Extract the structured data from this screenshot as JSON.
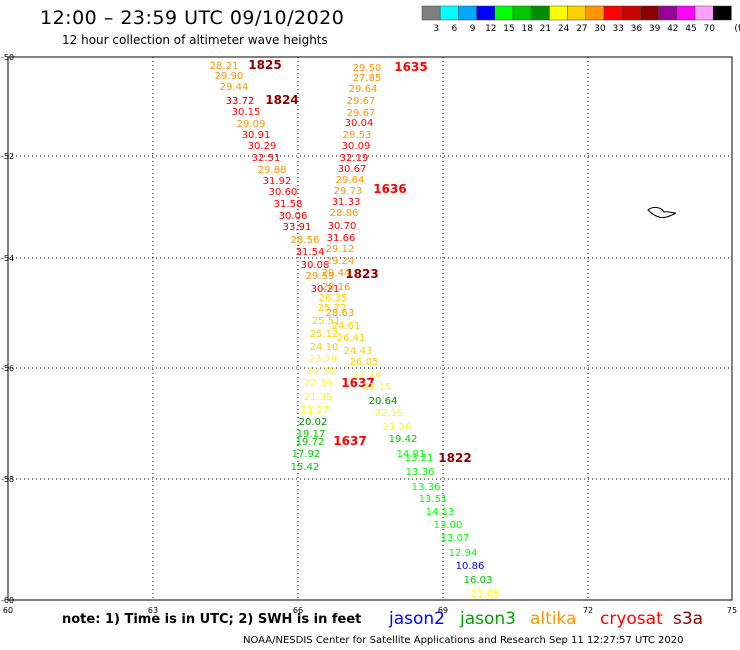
{
  "header": {
    "title": "12:00 – 23:59 UTC 09/10/2020",
    "subtitle": "12 hour collection of altimeter wave heights"
  },
  "legend": {
    "unit": "(ft)",
    "bins": [
      {
        "label": "3",
        "color": "#7f7f7f"
      },
      {
        "label": "6",
        "color": "#00ffff"
      },
      {
        "label": "9",
        "color": "#00a8ff"
      },
      {
        "label": "12",
        "color": "#0000ff"
      },
      {
        "label": "15",
        "color": "#00ff00"
      },
      {
        "label": "18",
        "color": "#00c800"
      },
      {
        "label": "21",
        "color": "#008c00"
      },
      {
        "label": "24",
        "color": "#ffff00"
      },
      {
        "label": "27",
        "color": "#ffd000"
      },
      {
        "label": "30",
        "color": "#ff9600"
      },
      {
        "label": "33",
        "color": "#ff0000"
      },
      {
        "label": "36",
        "color": "#c80000"
      },
      {
        "label": "39",
        "color": "#8c0000"
      },
      {
        "label": "42",
        "color": "#960096"
      },
      {
        "label": "45",
        "color": "#ff00ff"
      },
      {
        "label": "70",
        "color": "#ffa0ff"
      },
      {
        "label": "",
        "color": "#000000"
      }
    ]
  },
  "map": {
    "lat_labels": [
      "-50",
      "-52",
      "-54",
      "-56",
      "-58",
      "-60"
    ],
    "lon_labels": [
      "60",
      "63",
      "66",
      "69",
      "72",
      "75"
    ],
    "pass_times": [
      {
        "text": "1825",
        "color": "#8c0000"
      },
      {
        "text": "1824",
        "color": "#8c0000"
      },
      {
        "text": "1635",
        "color": "#ff0000"
      },
      {
        "text": "1636",
        "color": "#ff0000"
      },
      {
        "text": "1823",
        "color": "#8c0000"
      },
      {
        "text": "1637",
        "color": "#ff0000"
      },
      {
        "text": "1637",
        "color": "#ff0000"
      },
      {
        "text": "1822",
        "color": "#8c0000"
      }
    ],
    "heights": [
      {
        "text": "28.21",
        "color": "#ff9600"
      },
      {
        "text": "29.90",
        "color": "#ff9600"
      },
      {
        "text": "29.44",
        "color": "#ff9600"
      },
      {
        "text": "33.72",
        "color": "#c80000"
      },
      {
        "text": "30.15",
        "color": "#ff0000"
      },
      {
        "text": "29.09",
        "color": "#ff9600"
      },
      {
        "text": "30.91",
        "color": "#ff0000"
      },
      {
        "text": "30.29",
        "color": "#ff0000"
      },
      {
        "text": "32.51",
        "color": "#ff0000"
      },
      {
        "text": "29.88",
        "color": "#ff9600"
      },
      {
        "text": "31.92",
        "color": "#ff0000"
      },
      {
        "text": "30.60",
        "color": "#ff0000"
      },
      {
        "text": "31.58",
        "color": "#ff0000"
      },
      {
        "text": "30.06",
        "color": "#ff0000"
      },
      {
        "text": "33.91",
        "color": "#c80000"
      },
      {
        "text": "28.56",
        "color": "#ff9600"
      },
      {
        "text": "31.54",
        "color": "#ff0000"
      },
      {
        "text": "30.08",
        "color": "#ff0000"
      },
      {
        "text": "29.59",
        "color": "#ff9600"
      },
      {
        "text": "30.21",
        "color": "#ff0000"
      },
      {
        "text": "29.50",
        "color": "#ff9600"
      },
      {
        "text": "27.85",
        "color": "#ff9600"
      },
      {
        "text": "29.64",
        "color": "#ff9600"
      },
      {
        "text": "29.67",
        "color": "#ff9600"
      },
      {
        "text": "29.67",
        "color": "#ff9600"
      },
      {
        "text": "30.04",
        "color": "#ff0000"
      },
      {
        "text": "28.53",
        "color": "#ff9600"
      },
      {
        "text": "30.09",
        "color": "#ff0000"
      },
      {
        "text": "32.19",
        "color": "#ff0000"
      },
      {
        "text": "30.67",
        "color": "#ff0000"
      },
      {
        "text": "29.64",
        "color": "#ff9600"
      },
      {
        "text": "29.73",
        "color": "#ff9600"
      },
      {
        "text": "31.33",
        "color": "#ff0000"
      },
      {
        "text": "28.86",
        "color": "#ff9600"
      },
      {
        "text": "30.70",
        "color": "#ff0000"
      },
      {
        "text": "31.66",
        "color": "#ff0000"
      },
      {
        "text": "29.12",
        "color": "#ff9600"
      },
      {
        "text": "29.24",
        "color": "#ff9600"
      },
      {
        "text": "29.44",
        "color": "#ff9600"
      },
      {
        "text": "28.16",
        "color": "#ff9600"
      },
      {
        "text": "26.35",
        "color": "#ffd000"
      },
      {
        "text": "25.72",
        "color": "#ffd000"
      },
      {
        "text": "28.63",
        "color": "#ff9600"
      },
      {
        "text": "25.51",
        "color": "#ffd000"
      },
      {
        "text": "24.61",
        "color": "#ffd000"
      },
      {
        "text": "25.12",
        "color": "#ffd000"
      },
      {
        "text": "26.41",
        "color": "#ffd000"
      },
      {
        "text": "24.10",
        "color": "#ffd000"
      },
      {
        "text": "24.43",
        "color": "#ffd000"
      },
      {
        "text": "23.79",
        "color": "#ffff00"
      },
      {
        "text": "26.05",
        "color": "#ffd000"
      },
      {
        "text": "22.38",
        "color": "#ffff00"
      },
      {
        "text": "22.34",
        "color": "#ffff00"
      },
      {
        "text": "22.24",
        "color": "#ffff00"
      },
      {
        "text": "21.35",
        "color": "#ffff00"
      },
      {
        "text": "21.15",
        "color": "#ffff00"
      },
      {
        "text": "21.27",
        "color": "#ffff00"
      },
      {
        "text": "20.64",
        "color": "#008c00"
      },
      {
        "text": "20.02",
        "color": "#008c00"
      },
      {
        "text": "22.15",
        "color": "#ffff00"
      },
      {
        "text": "19.17",
        "color": "#00c800"
      },
      {
        "text": "21.26",
        "color": "#ffff00"
      },
      {
        "text": "19.72",
        "color": "#00c800"
      },
      {
        "text": "19.42",
        "color": "#00c800"
      },
      {
        "text": "17.92",
        "color": "#00c800"
      },
      {
        "text": "14.91",
        "color": "#00ff00"
      },
      {
        "text": "15.42",
        "color": "#00c800"
      },
      {
        "text": "13.21",
        "color": "#00ff00"
      },
      {
        "text": "13.36",
        "color": "#00ff00"
      },
      {
        "text": "13.36",
        "color": "#00ff00"
      },
      {
        "text": "13.51",
        "color": "#00ff00"
      },
      {
        "text": "14.13",
        "color": "#00ff00"
      },
      {
        "text": "13.00",
        "color": "#00ff00"
      },
      {
        "text": "13.07",
        "color": "#00ff00"
      },
      {
        "text": "12.94",
        "color": "#00ff00"
      },
      {
        "text": "10.86",
        "color": "#0000ff"
      },
      {
        "text": "16.03",
        "color": "#00c800"
      },
      {
        "text": "23.65",
        "color": "#ffff00"
      }
    ]
  },
  "footer": {
    "note": "note: 1) Time is in UTC; 2) SWH is in feet",
    "satellites": [
      {
        "label": "jason2",
        "color": "#0000ff"
      },
      {
        "label": "jason3",
        "color": "#00a000"
      },
      {
        "label": "altika",
        "color": "#ff9600"
      },
      {
        "label": "cryosat",
        "color": "#ff0000"
      },
      {
        "label": "s3a",
        "color": "#8c0000"
      }
    ],
    "credit": "NOAA/NESDIS Center for Satellite Applications and Research    Sep 11 12:27:57 UTC 2020"
  }
}
